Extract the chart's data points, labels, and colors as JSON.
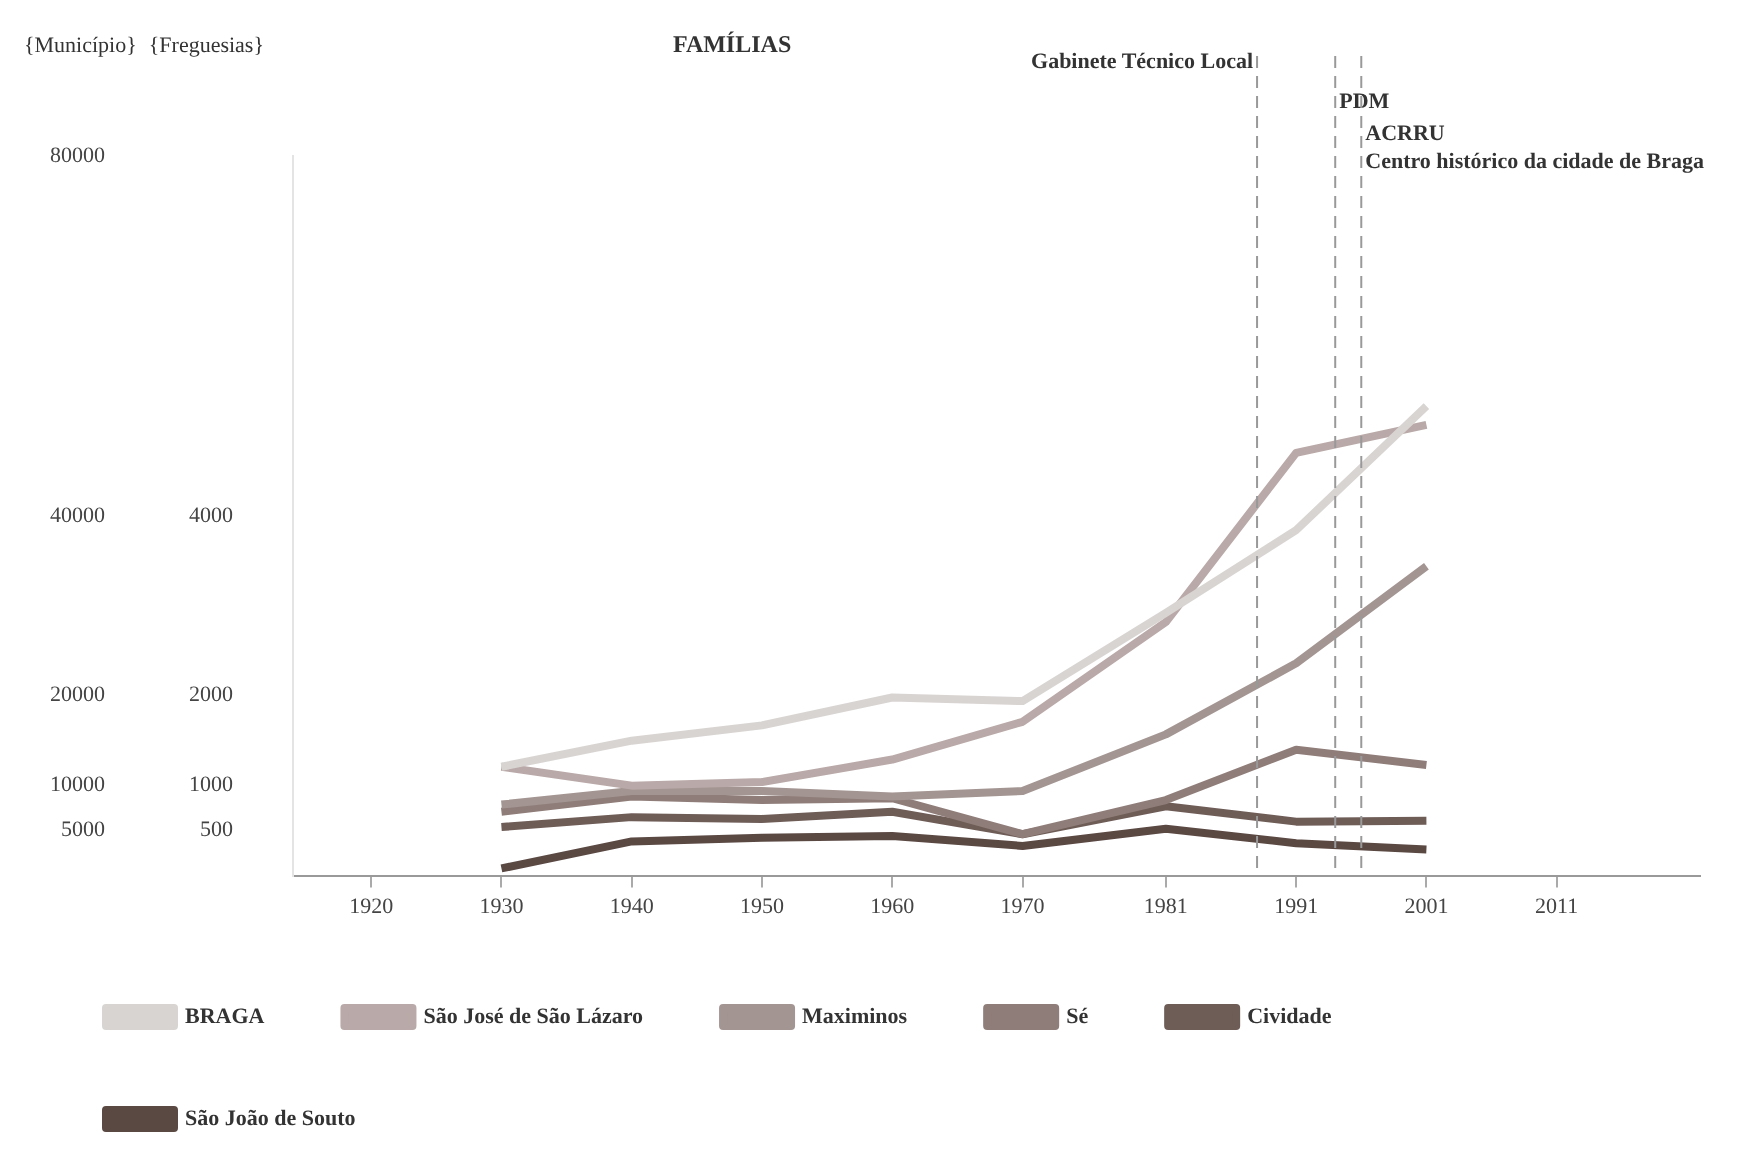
{
  "chart_data": {
    "type": "line",
    "title": "FAMÍLIAS",
    "ylabel": "{Município}",
    "y2label": "{Freguesias}",
    "x": [
      1930,
      1940,
      1950,
      1960,
      1970,
      1981,
      1991,
      2001
    ],
    "xlim": [
      1914,
      2022
    ],
    "xticks": [
      1920,
      1930,
      1940,
      1950,
      1960,
      1970,
      1981,
      1991,
      2001,
      2011
    ],
    "ylim": [
      0,
      80000
    ],
    "yticks": [
      5000,
      10000,
      20000,
      40000,
      80000
    ],
    "y2lim": [
      0,
      8000
    ],
    "y2ticks": [
      500,
      1000,
      2000,
      4000
    ],
    "series": [
      {
        "name": "BRAGA",
        "color": "#d8d4d2",
        "values": [
          12100,
          15000,
          16700,
          19800,
          19400,
          29200,
          38400,
          52200
        ]
      },
      {
        "name": "São José de São Lázaro",
        "color": "#b9a9a8",
        "axis": "y2",
        "values": [
          1210,
          1000,
          1040,
          1290,
          1710,
          2820,
          4700,
          5010
        ]
      },
      {
        "name": "Maximinos",
        "color": "#a39592",
        "axis": "y2",
        "values": [
          790,
          940,
          940,
          880,
          940,
          1570,
          2360,
          3440
        ]
      },
      {
        "name": "Sé",
        "color": "#8f7d79",
        "axis": "y2",
        "values": [
          710,
          880,
          840,
          860,
          460,
          840,
          1400,
          1230
        ]
      },
      {
        "name": "Cividade",
        "color": "#6e5c57",
        "axis": "y2",
        "values": [
          540,
          650,
          630,
          710,
          460,
          770,
          600,
          610
        ]
      },
      {
        "name": "São João de Souto",
        "color": "#5a4843",
        "axis": "y2",
        "values": [
          80,
          380,
          420,
          440,
          330,
          520,
          360,
          290
        ]
      }
    ],
    "ref_lines": [
      {
        "axis": "x",
        "value": 1988,
        "label": "Gabinete Técnico Local",
        "color": "#999999",
        "line_style": "dashed"
      },
      {
        "axis": "x",
        "value": 1994,
        "label": "PDM",
        "color": "#999999",
        "line_style": "dashed"
      },
      {
        "axis": "x",
        "value": 1996,
        "label": "ACRRU\nCentro histórico da cidade de Braga",
        "color": "#999999",
        "line_style": "dashed"
      }
    ],
    "grid": false,
    "legend": "bottom left",
    "marker": "none",
    "line_style": "solid"
  }
}
